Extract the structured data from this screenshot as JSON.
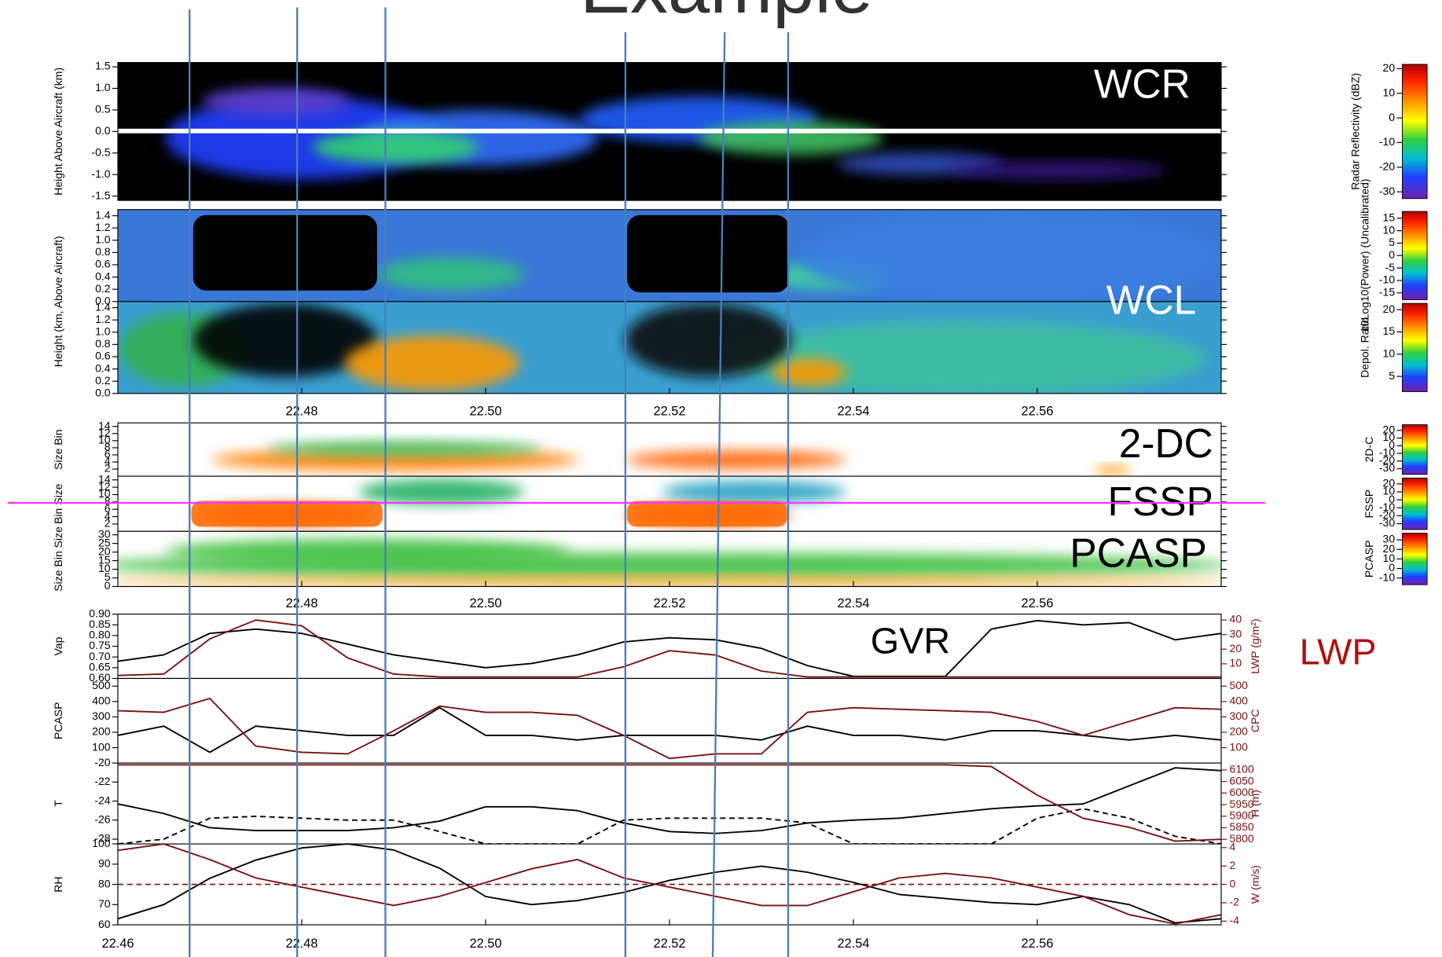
{
  "title": "Example",
  "chart_data": [
    {
      "type": "heatmap",
      "label": "WCR",
      "ylabel": "Height Above Aircraft (km)",
      "xlim": [
        22.46,
        22.58
      ],
      "ylim": [
        -1.6,
        1.6
      ],
      "yticks": [
        -1.5,
        {
          "value": -1,
          "label": "-1.0"
        },
        -0.5,
        {
          "value": 0,
          "label": "0.0"
        },
        0.5,
        {
          "value": 1,
          "label": "1.0"
        },
        1.5
      ],
      "colorbar": {
        "label": "Radar Reflectivity (dBZ)",
        "lim": [
          -32,
          21
        ],
        "ticks": [
          -30,
          -20,
          -10,
          0,
          10,
          20
        ]
      }
    },
    {
      "type": "heatmap",
      "ylabel": "Height (km, Above Aircraft)",
      "xlim": [
        22.46,
        22.58
      ],
      "ylim": [
        0,
        1.5
      ],
      "yticks": [
        {
          "value": 0,
          "label": "0.0"
        },
        0.2,
        0.4,
        0.6,
        0.8,
        {
          "value": 1,
          "label": "1.0"
        },
        1.2,
        1.4
      ],
      "colorbar": {
        "label": "10Log10(Power) (Uncalibrated)",
        "lim": [
          -17,
          17
        ],
        "ticks": [
          -15,
          -10,
          -5,
          0,
          5,
          10,
          15
        ]
      }
    },
    {
      "type": "heatmap",
      "label": "WCL",
      "xlim": [
        22.46,
        22.58
      ],
      "ylim": [
        0,
        1.5
      ],
      "yticks": [
        {
          "value": 0,
          "label": "0.0"
        },
        0.2,
        0.4,
        0.6,
        0.8,
        {
          "value": 1,
          "label": "1.0"
        },
        1.2,
        1.4
      ],
      "xticks": [
        22.48,
        {
          "value": 22.5,
          "label": "22.50"
        },
        22.52,
        22.54,
        22.56
      ],
      "colorbar": {
        "label": "Depol. Ratio",
        "lim": [
          2,
          21
        ],
        "ticks": [
          5,
          10,
          15,
          20
        ]
      }
    },
    {
      "type": "heatmap",
      "label": "2-DC",
      "ylabel": "Size Bin",
      "xlim": [
        22.46,
        22.58
      ],
      "ylim": [
        0,
        15
      ],
      "yticks": [
        2,
        4,
        6,
        8,
        10,
        12,
        14
      ],
      "colorbar": {
        "label": "2D-C",
        "lim": [
          -35,
          25
        ],
        "ticks": [
          -30,
          -20,
          -10,
          0,
          10,
          20
        ]
      }
    },
    {
      "type": "heatmap",
      "label": "FSSP",
      "ylabel": "Bin Size",
      "xlim": [
        22.46,
        22.58
      ],
      "ylim": [
        0,
        15
      ],
      "yticks": [
        2,
        4,
        6,
        8,
        10,
        12,
        14
      ],
      "colorbar": {
        "label": "FSSP",
        "lim": [
          -35,
          25
        ],
        "ticks": [
          -30,
          -20,
          -10,
          0,
          10,
          20
        ]
      }
    },
    {
      "type": "heatmap",
      "label": "PCASP",
      "ylabel": "Size Bin Size",
      "xlim": [
        22.46,
        22.58
      ],
      "ylim": [
        0,
        32
      ],
      "yticks": [
        0,
        5,
        10,
        15,
        20,
        25,
        30
      ],
      "xticks": [
        22.48,
        {
          "value": 22.5,
          "label": "22.50"
        },
        22.52,
        22.54,
        22.56
      ],
      "colorbar": {
        "label": "PCASP",
        "lim": [
          -15,
          35
        ],
        "ticks": [
          -10,
          0,
          10,
          20,
          30
        ]
      }
    },
    {
      "type": "line",
      "label": "GVR",
      "side_label": "LWP",
      "ylabel": "Vap",
      "y2label": "LWP (g/m²)",
      "xlim": [
        22.46,
        22.58
      ],
      "x": [
        22.46,
        22.465,
        22.47,
        22.475,
        22.48,
        22.485,
        22.49,
        22.495,
        22.5,
        22.505,
        22.51,
        22.515,
        22.52,
        22.525,
        22.53,
        22.535,
        22.54,
        22.545,
        22.55,
        22.555,
        22.56,
        22.565,
        22.57,
        22.575,
        22.58
      ],
      "ylim": [
        0.6,
        0.9
      ],
      "yticks": [
        {
          "value": 0.6,
          "label": "0.60"
        },
        0.65,
        {
          "value": 0.7,
          "label": "0.70"
        },
        0.75,
        {
          "value": 0.8,
          "label": "0.80"
        },
        0.85,
        {
          "value": 0.9,
          "label": "0.90"
        }
      ],
      "y2lim": [
        0,
        44
      ],
      "y2ticks": [
        10,
        20,
        30,
        40
      ],
      "series": [
        {
          "color": "#000000",
          "values": [
            0.68,
            0.71,
            0.81,
            0.83,
            0.81,
            0.76,
            0.71,
            0.68,
            0.65,
            0.67,
            0.71,
            0.77,
            0.79,
            0.78,
            0.74,
            0.66,
            0.61,
            0.61,
            0.61,
            0.83,
            0.87,
            0.85,
            0.86,
            0.78,
            0.81
          ]
        },
        {
          "color": "#7a1010",
          "axis": "y2",
          "values": [
            2,
            3,
            27,
            40,
            36,
            14,
            3,
            1,
            1,
            1,
            1,
            8,
            19,
            16,
            5,
            1,
            1,
            1,
            1,
            1,
            1,
            1,
            1,
            1,
            1
          ]
        }
      ]
    },
    {
      "type": "line",
      "ylabel": "PCASP",
      "y2label": "CPC",
      "xlim": [
        22.46,
        22.58
      ],
      "x": [
        22.46,
        22.465,
        22.47,
        22.475,
        22.48,
        22.485,
        22.49,
        22.495,
        22.5,
        22.505,
        22.51,
        22.515,
        22.52,
        22.525,
        22.53,
        22.535,
        22.54,
        22.545,
        22.55,
        22.555,
        22.56,
        22.565,
        22.57,
        22.575,
        22.58
      ],
      "ylim": [
        0,
        550
      ],
      "yticks": [
        100,
        200,
        300,
        400,
        500
      ],
      "y2lim": [
        0,
        550
      ],
      "y2ticks": [
        100,
        200,
        300,
        400,
        500
      ],
      "series": [
        {
          "color": "#000000",
          "values": [
            180,
            240,
            70,
            240,
            210,
            180,
            180,
            360,
            180,
            180,
            150,
            180,
            180,
            180,
            150,
            240,
            180,
            180,
            150,
            210,
            210,
            180,
            150,
            180,
            150
          ]
        },
        {
          "color": "#7a1010",
          "axis": "y2",
          "values": [
            340,
            330,
            420,
            110,
            70,
            60,
            210,
            370,
            330,
            330,
            310,
            180,
            30,
            60,
            60,
            330,
            360,
            350,
            340,
            330,
            270,
            180,
            270,
            360,
            350
          ]
        }
      ]
    },
    {
      "type": "line",
      "ylabel": "T",
      "y2label": "H (m)",
      "xlim": [
        22.46,
        22.58
      ],
      "x": [
        22.46,
        22.465,
        22.47,
        22.475,
        22.48,
        22.485,
        22.49,
        22.495,
        22.5,
        22.505,
        22.51,
        22.515,
        22.52,
        22.525,
        22.53,
        22.535,
        22.54,
        22.545,
        22.55,
        22.555,
        22.56,
        22.565,
        22.57,
        22.575,
        22.58
      ],
      "ylim": [
        -28.5,
        -20
      ],
      "yticks": [
        -28,
        -26,
        -24,
        -22,
        -20
      ],
      "y2lim": [
        5780,
        6130
      ],
      "y2ticks": [
        5800,
        5850,
        5900,
        5950,
        6000,
        6050,
        6100
      ],
      "series": [
        {
          "color": "#000000",
          "values": [
            -24.3,
            -25.3,
            -26.8,
            -27.1,
            -27.1,
            -27.1,
            -26.8,
            -26.1,
            -24.6,
            -24.6,
            -25.0,
            -26.3,
            -27.2,
            -27.4,
            -27.1,
            -26.3,
            -26.0,
            -25.8,
            -25.3,
            -24.8,
            -24.5,
            -24.3,
            -22.4,
            -20.5,
            -20.8
          ]
        },
        {
          "color": "#000000",
          "style": "dashed",
          "values": [
            -28.5,
            -28.0,
            -25.8,
            -25.6,
            -25.8,
            -26.0,
            -26.0,
            -27.2,
            -28.5,
            -28.5,
            -28.5,
            -26.0,
            -25.8,
            -25.8,
            -25.8,
            -26.3,
            -28.5,
            -28.5,
            -28.5,
            -28.5,
            -25.8,
            -24.8,
            -25.8,
            -27.7,
            -28.5
          ]
        },
        {
          "color": "#7a1010",
          "axis": "y2",
          "values": [
            6122,
            6122,
            6122,
            6122,
            6122,
            6122,
            6122,
            6122,
            6122,
            6122,
            6122,
            6122,
            6122,
            6122,
            6122,
            6122,
            6122,
            6122,
            6122,
            6115,
            5991,
            5891,
            5852,
            5792,
            5800
          ]
        }
      ]
    },
    {
      "type": "line",
      "ylabel": "RH",
      "y2label": "W (m/s)",
      "xlim": [
        22.46,
        22.58
      ],
      "x": [
        22.46,
        22.465,
        22.47,
        22.475,
        22.48,
        22.485,
        22.49,
        22.495,
        22.5,
        22.505,
        22.51,
        22.515,
        22.52,
        22.525,
        22.53,
        22.535,
        22.54,
        22.545,
        22.55,
        22.555,
        22.56,
        22.565,
        22.57,
        22.575,
        22.58
      ],
      "ylim": [
        60,
        100
      ],
      "yticks": [
        60,
        70,
        80,
        90,
        100
      ],
      "y2lim": [
        -4.4,
        4.4
      ],
      "y2ticks": [
        -4,
        -2,
        0,
        2,
        4
      ],
      "xticks": [
        22.46,
        22.48,
        {
          "value": 22.5,
          "label": "22.50"
        },
        22.52,
        22.54,
        22.56
      ],
      "hline": {
        "value": 0,
        "axis": "y2",
        "color": "#7a1010",
        "style": "dashed"
      },
      "series": [
        {
          "color": "#000000",
          "values": [
            63,
            70,
            83,
            92,
            98,
            100,
            97,
            88,
            74,
            70,
            72,
            76,
            82,
            86,
            89,
            86,
            81,
            75,
            73,
            71,
            70,
            74,
            70,
            61,
            63
          ]
        },
        {
          "color": "#7a1010",
          "axis": "y2",
          "values": [
            3.7,
            4.4,
            2.7,
            0.7,
            -0.3,
            -1.3,
            -2.3,
            -1.3,
            0.2,
            1.7,
            2.7,
            0.7,
            -0.3,
            -1.3,
            -2.3,
            -2.3,
            -0.8,
            0.7,
            1.2,
            0.7,
            -0.3,
            -1.3,
            -3.3,
            -4.3,
            -3.3
          ]
        }
      ]
    }
  ]
}
